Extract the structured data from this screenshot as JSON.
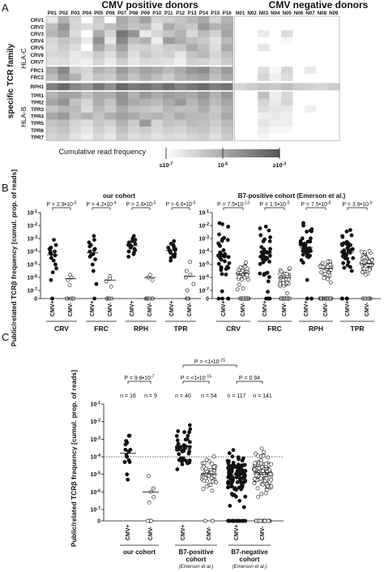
{
  "panel_labels": [
    "A",
    "B",
    "C"
  ],
  "heatmap": {
    "y_title": "specific TCR family",
    "pos_title": "CMV positive donors",
    "neg_title": "CMV negative donors",
    "pos_donors": [
      "P01",
      "P02",
      "P03",
      "P04",
      "P05",
      "P06",
      "P07",
      "P08",
      "P09",
      "P10",
      "P11",
      "P12",
      "P13",
      "P14",
      "P15",
      "P16"
    ],
    "neg_donors": [
      "N01",
      "N02",
      "N03",
      "N04",
      "N05",
      "N06",
      "N07",
      "N08",
      "N09"
    ],
    "rows": [
      "CRV1",
      "CRV2",
      "CRV3",
      "CRV4",
      "CRV5",
      "CRV6",
      "CRV7",
      "FRC1",
      "FRC2",
      "RPH1",
      "TPR1",
      "TPR2",
      "TPR3",
      "TPR4",
      "TPR5",
      "TPR6",
      "TPR7"
    ],
    "hla_c_label": "HLA-C",
    "hla_b_label": "HLA-B",
    "legend_title": "Cumulative read frequency",
    "legend_ticks": [
      "≤10^-7",
      "10^-5",
      "≥10^-3"
    ],
    "colors": {
      "low": "#ffffff",
      "high": "#555555"
    }
  },
  "chart_data": [
    {
      "type": "heatmap",
      "columns": [
        "P01",
        "P02",
        "P03",
        "P04",
        "P05",
        "P06",
        "P07",
        "P08",
        "P09",
        "P10",
        "P11",
        "P12",
        "P13",
        "P14",
        "P15",
        "P16",
        "N01",
        "N02",
        "N03",
        "N04",
        "N05",
        "N06",
        "N07",
        "N08",
        "N09"
      ],
      "rows": [
        "CRV1",
        "CRV2",
        "CRV3",
        "CRV4",
        "CRV5",
        "CRV6",
        "CRV7",
        "FRC1",
        "FRC2",
        "RPH1",
        "TPR1",
        "TPR2",
        "TPR3",
        "TPR4",
        "TPR5",
        "TPR6",
        "TPR7"
      ],
      "log10_values": [
        [
          -6.5,
          -5.2,
          -6,
          -7,
          -5.8,
          -7,
          -5,
          -5.5,
          -4.8,
          -6,
          -5.9,
          -5.6,
          -5.3,
          -5,
          -6,
          -5.2,
          -7,
          -7,
          -7,
          -7,
          -7,
          -7,
          -7,
          -7,
          -7
        ],
        [
          -5.5,
          -4.5,
          -6,
          -6.2,
          -5.9,
          -5.5,
          -5.1,
          -5.6,
          -5.4,
          -6.3,
          -5,
          -5.5,
          -5.7,
          -4.6,
          -5.2,
          -5,
          -7,
          -7,
          -7,
          -7,
          -7,
          -7,
          -7,
          -7,
          -7
        ],
        [
          -5.3,
          -4.8,
          -6.2,
          -7,
          -5.1,
          -6,
          -3.8,
          -4.5,
          -6.5,
          -6,
          -5.6,
          -5.2,
          -6.1,
          -5.4,
          -5.9,
          -4.9,
          -7,
          -7,
          -6.5,
          -7,
          -6.2,
          -7,
          -7,
          -7,
          -7
        ],
        [
          -6,
          -5.6,
          -5.9,
          -6.5,
          -4.4,
          -6.4,
          -4.2,
          -5.5,
          -5.2,
          -6.6,
          -4.7,
          -5.1,
          -5.5,
          -5.7,
          -6.3,
          -5.4,
          -7,
          -7,
          -7,
          -7,
          -6.8,
          -7,
          -7,
          -7,
          -7
        ],
        [
          -6.2,
          -5.8,
          -6.2,
          -7,
          -5,
          -5.8,
          -4.8,
          -6,
          -5.9,
          -6.1,
          -5.8,
          -5.7,
          -5,
          -5.5,
          -6.2,
          -5,
          -7,
          -7,
          -6.4,
          -7,
          -7,
          -7,
          -7,
          -7,
          -7
        ],
        [
          -6.1,
          -6,
          -6.5,
          -6.3,
          -5.8,
          -6.2,
          -5.3,
          -6.2,
          -5.7,
          -6,
          -5.9,
          -6.4,
          -5.6,
          -5.4,
          -6,
          -5.5,
          -7,
          -7,
          -7,
          -7,
          -7,
          -7,
          -7,
          -7,
          -7
        ],
        [
          -6.3,
          -6.2,
          -6.5,
          -6.6,
          -6,
          -6.5,
          -5.8,
          -6.4,
          -6.1,
          -6.2,
          -6.3,
          -6.6,
          -5.9,
          -6,
          -6.2,
          -5.8,
          -7,
          -7,
          -7,
          -7,
          -7,
          -7,
          -7,
          -7,
          -7
        ],
        [
          -5,
          -4.2,
          -5.8,
          -6,
          -5.2,
          -5.5,
          -4.6,
          -5.2,
          -4.8,
          -5,
          -5.4,
          -5,
          -4.5,
          -4.3,
          -5.2,
          -4.6,
          -7,
          -7,
          -6.2,
          -6.8,
          -6,
          -7,
          -6.5,
          -7,
          -7
        ],
        [
          -5.5,
          -4.6,
          -5.2,
          -6.1,
          -5.6,
          -5.8,
          -5,
          -5.6,
          -5.1,
          -5.5,
          -5.8,
          -5.2,
          -5,
          -4.8,
          -5.5,
          -5,
          -7,
          -7,
          -6,
          -6.6,
          -6.2,
          -7,
          -7,
          -7,
          -7
        ],
        [
          -4,
          -3.5,
          -4.2,
          -4.5,
          -3.8,
          -4.4,
          -3.4,
          -3.9,
          -3.7,
          -4,
          -3.6,
          -4.1,
          -3.8,
          -3.5,
          -4,
          -3.7,
          -6,
          -5.8,
          -5.6,
          -5.7,
          -5.5,
          -5.8,
          -5.9,
          -6,
          -5.8
        ],
        [
          -5.2,
          -4.8,
          -4.9,
          -5.5,
          -5,
          -5.1,
          -4.4,
          -5.2,
          -4.6,
          -5,
          -4.7,
          -4.9,
          -5,
          -4.5,
          -5.2,
          -4.6,
          -7,
          -7,
          -5.5,
          -6.6,
          -6.1,
          -7,
          -7,
          -7,
          -7
        ],
        [
          -4.9,
          -4.5,
          -5.6,
          -6,
          -5.1,
          -5.6,
          -4.5,
          -5,
          -5.2,
          -5.4,
          -5,
          -4.6,
          -5.3,
          -4.8,
          -5.4,
          -4.9,
          -7,
          -7,
          -6,
          -6.5,
          -6,
          -7,
          -7,
          -7,
          -7
        ],
        [
          -5.6,
          -5.2,
          -5.4,
          -6.2,
          -5.4,
          -5.8,
          -5,
          -5.5,
          -5.6,
          -5.8,
          -5.3,
          -5.5,
          -5.5,
          -5.1,
          -5.7,
          -5.2,
          -7,
          -7,
          -6.2,
          -6.4,
          -6.4,
          -7,
          -6.6,
          -7,
          -7
        ],
        [
          -4.9,
          -4.6,
          -5.5,
          -5.2,
          -5.6,
          -5.1,
          -4.8,
          -5,
          -5.4,
          -5.2,
          -5.5,
          -5.1,
          -5.3,
          -5.4,
          -5.6,
          -5,
          -7,
          -7,
          -6.6,
          -6.5,
          -6.6,
          -7,
          -7,
          -7,
          -7
        ],
        [
          -5.6,
          -5.4,
          -6,
          -6.2,
          -5.7,
          -5.9,
          -5.2,
          -5.8,
          -4.6,
          -6,
          -5.6,
          -5.7,
          -5.4,
          -5.5,
          -5.8,
          -5.4,
          -7,
          -7,
          -6.4,
          -6.6,
          -6.6,
          -7,
          -7,
          -7,
          -7
        ],
        [
          -5.8,
          -5.6,
          -6.1,
          -6.4,
          -5.9,
          -6.2,
          -5.5,
          -6,
          -5.8,
          -6.1,
          -5.9,
          -6,
          -5.7,
          -5.6,
          -6,
          -5.6,
          -7,
          -7,
          -6.6,
          -6.8,
          -6.8,
          -7,
          -7,
          -7,
          -7
        ],
        [
          -6,
          -5.9,
          -6.3,
          -6.6,
          -6.1,
          -6.4,
          -5.8,
          -6.2,
          -6,
          -6.3,
          -6.1,
          -6.2,
          -6,
          -5.9,
          -6.2,
          -5.8,
          -7,
          -7,
          -6.8,
          -7,
          -7,
          -7,
          -7,
          -7,
          -7
        ]
      ],
      "value_range_log10": [
        -7,
        -3
      ]
    },
    {
      "type": "scatter",
      "title": "our cohort",
      "ylabel": "Public/related TCRβ frequency [cumul. prop. of reads]",
      "y_scale": "log",
      "y_ticks": [
        "10^-1",
        "10^-2",
        "10^-3",
        "10^-4",
        "10^-5",
        "10^-6",
        "10^-7",
        "0"
      ],
      "groups": [
        {
          "name": "CRV",
          "p_value": "P = 2.9•10^-5",
          "pos": [
            -3.1,
            -3.5,
            -3.7,
            -3.8,
            -4,
            -4,
            -4.1,
            -4.2,
            -4.3,
            -4.5,
            -4.7,
            -5,
            -5.3,
            -5.6,
            -6.2,
            -8
          ],
          "neg": [
            -5.8,
            -6,
            -6.2,
            -6.6,
            -8,
            -8,
            -8,
            -8,
            -8
          ]
        },
        {
          "name": "FRC",
          "p_value": "P = 4.2•10^-4",
          "pos": [
            -2.8,
            -3.1,
            -3.3,
            -3.5,
            -3.6,
            -3.8,
            -3.9,
            -4,
            -4.2,
            -4.3,
            -4.4,
            -4.6,
            -5,
            -5.5,
            -6.5,
            -8
          ],
          "neg": [
            -5.9,
            -6.1,
            -6.3,
            -6.7,
            -8,
            -8,
            -8,
            -8,
            -8
          ]
        },
        {
          "name": "RPH",
          "p_value": "P = 2.6•10^-5",
          "pos": [
            -2.8,
            -3,
            -3.1,
            -3.2,
            -3.3,
            -3.4,
            -3.5,
            -3.5,
            -3.6,
            -3.7,
            -3.8,
            -3.9,
            -4,
            -4.1,
            -4.2,
            -4.4
          ],
          "neg": [
            -5.8,
            -6,
            -6.2,
            -8,
            -8,
            -8,
            -8,
            -8,
            -8
          ]
        },
        {
          "name": "TPR",
          "p_value": "P = 6.6•10^-5",
          "pos": [
            -3.2,
            -3.4,
            -3.5,
            -3.6,
            -3.7,
            -3.8,
            -3.8,
            -3.9,
            -3.9,
            -4,
            -4.1,
            -4.2,
            -4.3,
            -4.4,
            -4.5,
            -4.7
          ],
          "neg": [
            -4.8,
            -5.5,
            -5.8,
            -6,
            -6.5,
            -7,
            -8,
            -8,
            -8
          ]
        }
      ],
      "x_categories": [
        "CMV+",
        "CMV-"
      ]
    },
    {
      "type": "scatter",
      "title": "B7-positive cohort (Emerson et al.)",
      "y_scale": "log",
      "groups": [
        {
          "name": "CRV",
          "p_value": "P = 7.5•10^-13"
        },
        {
          "name": "FRC",
          "p_value": "P = 1.5•10^-5"
        },
        {
          "name": "RPH",
          "p_value": "P = 7.5•10^-8"
        },
        {
          "name": "TPR",
          "p_value": "P = 3.9•10^-9"
        }
      ],
      "x_categories": [
        "CMV+",
        "CMV-"
      ]
    },
    {
      "type": "scatter",
      "ylabel": "Public/related TCRβ frequency [cumul. prop. of reads]",
      "y_scale": "log",
      "threshold": "10^-4",
      "groups": [
        {
          "name": "our cohort",
          "cite": "",
          "n_pos": "n = 16",
          "n_neg": "n = 9"
        },
        {
          "name": "B7-positive cohort",
          "cite": "(Emerson et al.)",
          "n_pos": "n = 40",
          "n_neg": "n = 54"
        },
        {
          "name": "B7-negative cohort",
          "cite": "(Emerson et al.)",
          "n_pos": "n = 117",
          "n_neg": "n = 141"
        }
      ],
      "p_values": {
        "ours": "P = 9.8•10^-7",
        "b7pos": "P = <1•10^-15",
        "b7neg": "P = 0.94",
        "across": "P = <1•10^-15"
      },
      "x_categories": [
        "CMV+",
        "CMV-"
      ]
    }
  ]
}
